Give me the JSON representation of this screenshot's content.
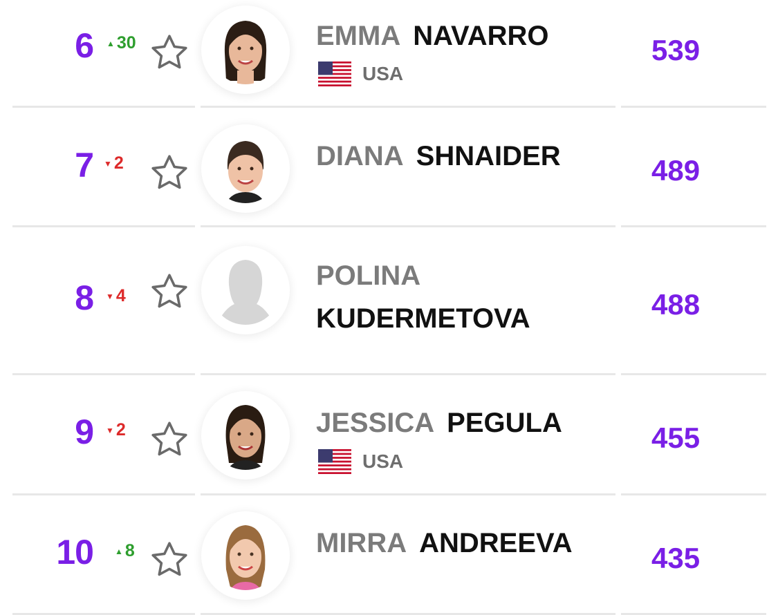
{
  "colors": {
    "accent": "#7A1FE6",
    "rise": "#2E9E2E",
    "fall": "#DD2A2A",
    "first_name": "#7b7b7b",
    "last_name": "#111111"
  },
  "players": [
    {
      "rank": "6",
      "movement": {
        "direction": "up",
        "value": "30"
      },
      "first_name": "EMMA",
      "last_name": "NAVARRO",
      "country": "USA",
      "points": "539"
    },
    {
      "rank": "7",
      "movement": {
        "direction": "down",
        "value": "2"
      },
      "first_name": "DIANA",
      "last_name": "SHNAIDER",
      "country": "",
      "points": "489"
    },
    {
      "rank": "8",
      "movement": {
        "direction": "down",
        "value": "4"
      },
      "first_name": "POLINA",
      "last_name": "KUDERMETOVA",
      "country": "",
      "points": "488"
    },
    {
      "rank": "9",
      "movement": {
        "direction": "down",
        "value": "2"
      },
      "first_name": "JESSICA",
      "last_name": "PEGULA",
      "country": "USA",
      "points": "455"
    },
    {
      "rank": "10",
      "movement": {
        "direction": "up",
        "value": "8"
      },
      "first_name": "MIRRA",
      "last_name": "ANDREEVA",
      "country": "",
      "points": "435"
    }
  ],
  "icons": {
    "favorite": "star-outline-icon",
    "flag": "usa-flag-icon",
    "placeholder_avatar": "person-silhouette-icon"
  }
}
